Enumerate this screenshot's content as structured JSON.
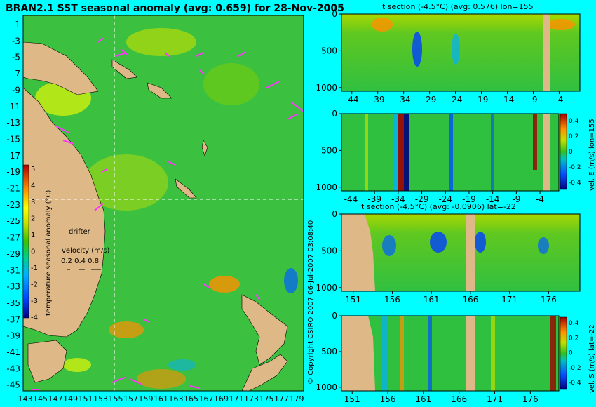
{
  "header": {
    "title": "BRAN2.1 SST seasonal anomaly (avg: 0.659) for 28-Nov-2005"
  },
  "credit": "© Copyright CSIRO 2007   06-Jul-2007 03:08:40",
  "colors": {
    "background": "#00ffff",
    "land": "#deb887",
    "drifter": "#ff33ff",
    "crosshair": "#ffffff"
  },
  "chart_data": [
    {
      "type": "heatmap",
      "role": "map",
      "title": "BRAN2.1 SST seasonal anomaly (avg: 0.659) for 28-Nov-2005",
      "xlim": [
        143,
        180
      ],
      "ylim": [
        -45,
        0
      ],
      "x_ticks": [
        "143",
        "145",
        "147",
        "149",
        "151",
        "153",
        "155",
        "157",
        "159",
        "161",
        "163",
        "165",
        "167",
        "169",
        "171",
        "173",
        "175",
        "177",
        "179"
      ],
      "y_ticks": [
        "-1",
        "-3",
        "-5",
        "-7",
        "-9",
        "-11",
        "-13",
        "-15",
        "-17",
        "-19",
        "-21",
        "-23",
        "-25",
        "-27",
        "-29",
        "-31",
        "-33",
        "-35",
        "-37",
        "-39",
        "-41",
        "-43",
        "-45"
      ],
      "crosshair": {
        "lon": 155,
        "lat": -22
      },
      "colorbar": {
        "label": "temperature seasonal anomaly (°C)",
        "min": -4,
        "max": 5,
        "ticks": [
          "5",
          "4",
          "3",
          "2",
          "1",
          "0",
          "-1",
          "-2",
          "-3",
          "-4"
        ]
      },
      "legend": {
        "drifter_label": "drifter",
        "velocity_label": "velocity (m/s)",
        "velocity_values": "0.2  0.4  0.8"
      }
    },
    {
      "type": "heatmap",
      "role": "section",
      "title": "t section (-4.5°C) (avg: 0.576) lon=155",
      "xlim": [
        -46,
        0
      ],
      "ylim": [
        1050,
        0
      ],
      "x_ticks": [
        -44,
        -39,
        -34,
        -29,
        -24,
        -19,
        -14,
        -9,
        -4
      ],
      "y_ticks": [
        0,
        500,
        1000
      ]
    },
    {
      "type": "heatmap",
      "role": "section",
      "title": "",
      "xlim": [
        -46,
        0
      ],
      "ylim": [
        1050,
        0
      ],
      "x_ticks": [
        -44,
        -39,
        -34,
        -29,
        -24,
        -19,
        -14,
        -9,
        -4
      ],
      "y_ticks": [
        0,
        500,
        1000
      ],
      "colorbar": {
        "label": "vel. E (m/s) lon=155",
        "ticks": [
          "0.4",
          "0.2",
          "0",
          "-0.2",
          "-0.4"
        ]
      }
    },
    {
      "type": "heatmap",
      "role": "section",
      "title": "t section (-4.5°C) (avg: -0.0906) lat=-22",
      "xlim": [
        149.5,
        180
      ],
      "ylim": [
        1050,
        0
      ],
      "x_ticks": [
        151,
        156,
        161,
        166,
        171,
        176
      ],
      "y_ticks": [
        0,
        500,
        1000
      ]
    },
    {
      "type": "heatmap",
      "role": "section",
      "title": "",
      "xlim": [
        149.5,
        180
      ],
      "ylim": [
        1050,
        0
      ],
      "x_ticks": [
        151,
        156,
        161,
        166,
        171,
        176
      ],
      "y_ticks": [
        0,
        500,
        1000
      ],
      "colorbar": {
        "label": "vel. S (m/s) lat=-22",
        "ticks": [
          "0.4",
          "0.2",
          "0",
          "-0.2",
          "-0.4"
        ]
      }
    }
  ]
}
